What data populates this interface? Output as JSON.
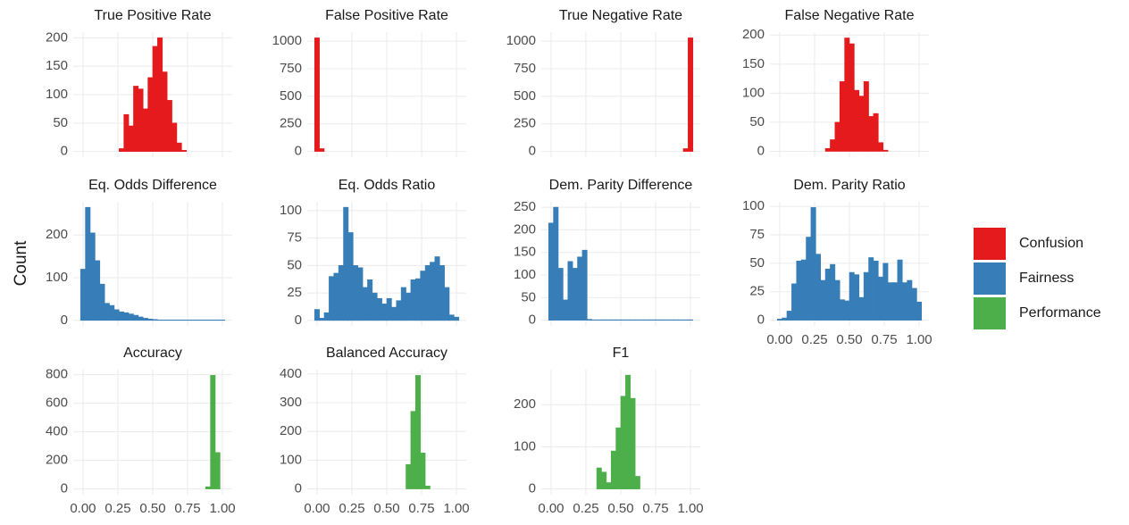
{
  "y_label": "Count",
  "legend": [
    {
      "name": "Confusion",
      "color": "#e41a1c"
    },
    {
      "name": "Fairness",
      "color": "#377eb8"
    },
    {
      "name": "Performance",
      "color": "#4daf4a"
    }
  ],
  "chart_data": [
    {
      "type": "histogram",
      "title": "True Positive Rate",
      "color": "#e41a1c",
      "bins": [
        -0.0172,
        0.0172,
        0.0517,
        0.0862,
        0.1207,
        0.1552,
        0.1897,
        0.2241,
        0.2586,
        0.2931,
        0.3276,
        0.3621,
        0.3966,
        0.431,
        0.4655,
        0.5,
        0.5345,
        0.569,
        0.6034,
        0.6379,
        0.6724,
        0.7069,
        0.7414,
        0.7759,
        0.8103,
        0.8448,
        0.8793,
        0.9138,
        0.9483,
        0.9828,
        1.0172
      ],
      "values": [
        0,
        0,
        0,
        0,
        0,
        0,
        0,
        0,
        5,
        65,
        45,
        115,
        110,
        75,
        130,
        185,
        200,
        140,
        90,
        50,
        15,
        2,
        0,
        0,
        0,
        0,
        0,
        0,
        0,
        0
      ],
      "xlim": [
        -0.07,
        1.07
      ],
      "xticks": [
        {
          "value": 0,
          "label": "0.00"
        },
        {
          "value": 0.25,
          "label": "0.25"
        },
        {
          "value": 0.5,
          "label": "0.50"
        },
        {
          "value": 0.75,
          "label": "0.75"
        },
        {
          "value": 1,
          "label": "1.00"
        }
      ],
      "ylim": [
        -10,
        210
      ],
      "yticks": [
        0,
        50,
        100,
        150,
        200
      ]
    },
    {
      "type": "histogram",
      "title": "False Positive Rate",
      "color": "#e41a1c",
      "bins": [
        -0.0172,
        0.0172,
        0.0517,
        0.0862,
        0.1207,
        0.1552,
        0.1897,
        0.2241,
        0.2586,
        0.2931,
        0.3276,
        0.3621,
        0.3966,
        0.431,
        0.4655,
        0.5,
        0.5345,
        0.569,
        0.6034,
        0.6379,
        0.6724,
        0.7069,
        0.7414,
        0.7759,
        0.8103,
        0.8448,
        0.8793,
        0.9138,
        0.9483,
        0.9828,
        1.0172
      ],
      "values": [
        1030,
        25,
        0,
        0,
        0,
        0,
        0,
        0,
        0,
        0,
        0,
        0,
        0,
        0,
        0,
        0,
        0,
        0,
        0,
        0,
        0,
        0,
        0,
        0,
        0,
        0,
        0,
        0,
        0,
        0
      ],
      "xlim": [
        -0.07,
        1.07
      ],
      "xticks": [
        {
          "value": 0,
          "label": "0.00"
        },
        {
          "value": 0.25,
          "label": "0.25"
        },
        {
          "value": 0.5,
          "label": "0.50"
        },
        {
          "value": 0.75,
          "label": "0.75"
        },
        {
          "value": 1,
          "label": "1.00"
        }
      ],
      "ylim": [
        -52,
        1082
      ],
      "yticks": [
        0,
        250,
        500,
        750,
        1000
      ]
    },
    {
      "type": "histogram",
      "title": "True Negative Rate",
      "color": "#e41a1c",
      "bins": [
        -0.0172,
        0.0172,
        0.0517,
        0.0862,
        0.1207,
        0.1552,
        0.1897,
        0.2241,
        0.2586,
        0.2931,
        0.3276,
        0.3621,
        0.3966,
        0.431,
        0.4655,
        0.5,
        0.5345,
        0.569,
        0.6034,
        0.6379,
        0.6724,
        0.7069,
        0.7414,
        0.7759,
        0.8103,
        0.8448,
        0.8793,
        0.9138,
        0.9483,
        0.9828,
        1.0172
      ],
      "values": [
        0,
        0,
        0,
        0,
        0,
        0,
        0,
        0,
        0,
        0,
        0,
        0,
        0,
        0,
        0,
        0,
        0,
        0,
        0,
        0,
        0,
        0,
        0,
        0,
        0,
        0,
        0,
        0,
        25,
        1030
      ],
      "xlim": [
        -0.07,
        1.07
      ],
      "xticks": [
        {
          "value": 0,
          "label": "0.00"
        },
        {
          "value": 0.25,
          "label": "0.25"
        },
        {
          "value": 0.5,
          "label": "0.50"
        },
        {
          "value": 0.75,
          "label": "0.75"
        },
        {
          "value": 1,
          "label": "1.00"
        }
      ],
      "ylim": [
        -52,
        1082
      ],
      "yticks": [
        0,
        250,
        500,
        750,
        1000
      ]
    },
    {
      "type": "histogram",
      "title": "False Negative Rate",
      "color": "#e41a1c",
      "bins": [
        -0.0172,
        0.0172,
        0.0517,
        0.0862,
        0.1207,
        0.1552,
        0.1897,
        0.2241,
        0.2586,
        0.2931,
        0.3276,
        0.3621,
        0.3966,
        0.431,
        0.4655,
        0.5,
        0.5345,
        0.569,
        0.6034,
        0.6379,
        0.6724,
        0.7069,
        0.7414,
        0.7759,
        0.8103,
        0.8448,
        0.8793,
        0.9138,
        0.9483,
        0.9828,
        1.0172
      ],
      "values": [
        0,
        0,
        0,
        0,
        0,
        0,
        0,
        0,
        0,
        0,
        5,
        20,
        50,
        120,
        195,
        185,
        105,
        95,
        120,
        60,
        65,
        15,
        2,
        0,
        0,
        0,
        0,
        0,
        0,
        0
      ],
      "xlim": [
        -0.07,
        1.07
      ],
      "xticks": [
        {
          "value": 0,
          "label": "0.00"
        },
        {
          "value": 0.25,
          "label": "0.25"
        },
        {
          "value": 0.5,
          "label": "0.50"
        },
        {
          "value": 0.75,
          "label": "0.75"
        },
        {
          "value": 1,
          "label": "1.00"
        }
      ],
      "ylim": [
        -10,
        205
      ],
      "yticks": [
        0,
        50,
        100,
        150,
        200
      ]
    },
    {
      "type": "histogram",
      "title": "Eq. Odds Difference",
      "color": "#377eb8",
      "bins": [
        -0.0172,
        0.0172,
        0.0517,
        0.0862,
        0.1207,
        0.1552,
        0.1897,
        0.2241,
        0.2586,
        0.2931,
        0.3276,
        0.3621,
        0.3966,
        0.431,
        0.4655,
        0.5,
        0.5345,
        0.569,
        0.6034,
        0.6379,
        0.6724,
        0.7069,
        0.7414,
        0.7759,
        0.8103,
        0.8448,
        0.8793,
        0.9138,
        0.9483,
        0.9828,
        1.0172
      ],
      "values": [
        120,
        265,
        205,
        140,
        85,
        40,
        35,
        25,
        20,
        18,
        15,
        12,
        8,
        5,
        3,
        2,
        1,
        1,
        1,
        1,
        1,
        1,
        1,
        1,
        1,
        1,
        1,
        1,
        1,
        1
      ],
      "xlim": [
        -0.07,
        1.07
      ],
      "xticks": [
        {
          "value": 0,
          "label": "0.00"
        },
        {
          "value": 0.25,
          "label": "0.25"
        },
        {
          "value": 0.5,
          "label": "0.50"
        },
        {
          "value": 0.75,
          "label": "0.75"
        },
        {
          "value": 1,
          "label": "1.00"
        }
      ],
      "ylim": [
        -13,
        278
      ],
      "yticks": [
        0,
        100,
        200
      ]
    },
    {
      "type": "histogram",
      "title": "Eq. Odds Ratio",
      "color": "#377eb8",
      "bins": [
        -0.0172,
        0.0172,
        0.0517,
        0.0862,
        0.1207,
        0.1552,
        0.1897,
        0.2241,
        0.2586,
        0.2931,
        0.3276,
        0.3621,
        0.3966,
        0.431,
        0.4655,
        0.5,
        0.5345,
        0.569,
        0.6034,
        0.6379,
        0.6724,
        0.7069,
        0.7414,
        0.7759,
        0.8103,
        0.8448,
        0.8793,
        0.9138,
        0.9483,
        0.9828,
        1.0172
      ],
      "values": [
        10,
        2,
        7,
        40,
        43,
        50,
        103,
        80,
        50,
        48,
        30,
        37,
        25,
        20,
        15,
        20,
        12,
        18,
        30,
        25,
        37,
        38,
        45,
        50,
        53,
        58,
        50,
        30,
        5,
        3
      ],
      "xlim": [
        -0.07,
        1.07
      ],
      "xticks": [
        {
          "value": 0,
          "label": "0.00"
        },
        {
          "value": 0.25,
          "label": "0.25"
        },
        {
          "value": 0.5,
          "label": "0.50"
        },
        {
          "value": 0.75,
          "label": "0.75"
        },
        {
          "value": 1,
          "label": "1.00"
        }
      ],
      "ylim": [
        -5,
        108
      ],
      "yticks": [
        0,
        25,
        50,
        75,
        100
      ]
    },
    {
      "type": "histogram",
      "title": "Dem. Parity Difference",
      "color": "#377eb8",
      "bins": [
        -0.0172,
        0.0172,
        0.0517,
        0.0862,
        0.1207,
        0.1552,
        0.1897,
        0.2241,
        0.2586,
        0.2931,
        0.3276,
        0.3621,
        0.3966,
        0.431,
        0.4655,
        0.5,
        0.5345,
        0.569,
        0.6034,
        0.6379,
        0.6724,
        0.7069,
        0.7414,
        0.7759,
        0.8103,
        0.8448,
        0.8793,
        0.9138,
        0.9483,
        0.9828,
        1.0172
      ],
      "values": [
        215,
        250,
        115,
        45,
        130,
        115,
        140,
        155,
        2,
        1,
        1,
        1,
        1,
        1,
        1,
        1,
        1,
        1,
        1,
        1,
        1,
        1,
        1,
        1,
        1,
        1,
        1,
        1,
        1,
        1
      ],
      "xlim": [
        -0.07,
        1.07
      ],
      "xticks": [
        {
          "value": 0,
          "label": "0.00"
        },
        {
          "value": 0.25,
          "label": "0.25"
        },
        {
          "value": 0.5,
          "label": "0.50"
        },
        {
          "value": 0.75,
          "label": "0.75"
        },
        {
          "value": 1,
          "label": "1.00"
        }
      ],
      "ylim": [
        -12.5,
        262
      ],
      "yticks": [
        0,
        50,
        100,
        150,
        200,
        250
      ]
    },
    {
      "type": "histogram",
      "title": "Dem. Parity Ratio",
      "color": "#377eb8",
      "bins": [
        -0.0172,
        0.0172,
        0.0517,
        0.0862,
        0.1207,
        0.1552,
        0.1897,
        0.2241,
        0.2586,
        0.2931,
        0.3276,
        0.3621,
        0.3966,
        0.431,
        0.4655,
        0.5,
        0.5345,
        0.569,
        0.6034,
        0.6379,
        0.6724,
        0.7069,
        0.7414,
        0.7759,
        0.8103,
        0.8448,
        0.8793,
        0.9138,
        0.9483,
        0.9828,
        1.0172
      ],
      "values": [
        1,
        2,
        8,
        32,
        52,
        53,
        73,
        99,
        58,
        35,
        45,
        49,
        35,
        18,
        17,
        42,
        40,
        20,
        42,
        55,
        52,
        38,
        50,
        33,
        33,
        53,
        33,
        35,
        28,
        16
      ],
      "xlim": [
        -0.07,
        1.07
      ],
      "xticks": [
        {
          "value": 0,
          "label": "0.00"
        },
        {
          "value": 0.25,
          "label": "0.25"
        },
        {
          "value": 0.5,
          "label": "0.50"
        },
        {
          "value": 0.75,
          "label": "0.75"
        },
        {
          "value": 1,
          "label": "1.00"
        }
      ],
      "ylim": [
        -5,
        104
      ],
      "yticks": [
        0,
        25,
        50,
        75,
        100
      ]
    },
    {
      "type": "histogram",
      "title": "Accuracy",
      "color": "#4daf4a",
      "bins": [
        -0.0172,
        0.0172,
        0.0517,
        0.0862,
        0.1207,
        0.1552,
        0.1897,
        0.2241,
        0.2586,
        0.2931,
        0.3276,
        0.3621,
        0.3966,
        0.431,
        0.4655,
        0.5,
        0.5345,
        0.569,
        0.6034,
        0.6379,
        0.6724,
        0.7069,
        0.7414,
        0.7759,
        0.8103,
        0.8448,
        0.8793,
        0.9138,
        0.9483,
        0.9828,
        1.0172
      ],
      "values": [
        0,
        0,
        0,
        0,
        0,
        0,
        0,
        0,
        0,
        0,
        0,
        0,
        0,
        0,
        0,
        0,
        0,
        0,
        0,
        0,
        0,
        0,
        0,
        0,
        0,
        0,
        15,
        795,
        255,
        0
      ],
      "xlim": [
        -0.07,
        1.07
      ],
      "xticks": [
        {
          "value": 0,
          "label": "0.00"
        },
        {
          "value": 0.25,
          "label": "0.25"
        },
        {
          "value": 0.5,
          "label": "0.50"
        },
        {
          "value": 0.75,
          "label": "0.75"
        },
        {
          "value": 1,
          "label": "1.00"
        }
      ],
      "ylim": [
        -40,
        835
      ],
      "yticks": [
        0,
        200,
        400,
        600,
        800
      ]
    },
    {
      "type": "histogram",
      "title": "Balanced Accuracy",
      "color": "#4daf4a",
      "bins": [
        -0.0172,
        0.0172,
        0.0517,
        0.0862,
        0.1207,
        0.1552,
        0.1897,
        0.2241,
        0.2586,
        0.2931,
        0.3276,
        0.3621,
        0.3966,
        0.431,
        0.4655,
        0.5,
        0.5345,
        0.569,
        0.6034,
        0.6379,
        0.6724,
        0.7069,
        0.7414,
        0.7759,
        0.8103,
        0.8448,
        0.8793,
        0.9138,
        0.9483,
        0.9828,
        1.0172
      ],
      "values": [
        0,
        0,
        0,
        0,
        0,
        0,
        0,
        0,
        0,
        0,
        0,
        0,
        0,
        0,
        0,
        0,
        0,
        0,
        0,
        85,
        270,
        395,
        125,
        10,
        0,
        0,
        0,
        0,
        0,
        0
      ],
      "xlim": [
        -0.07,
        1.07
      ],
      "xticks": [
        {
          "value": 0,
          "label": "0.00"
        },
        {
          "value": 0.25,
          "label": "0.25"
        },
        {
          "value": 0.5,
          "label": "0.50"
        },
        {
          "value": 0.75,
          "label": "0.75"
        },
        {
          "value": 1,
          "label": "1.00"
        }
      ],
      "ylim": [
        -20,
        415
      ],
      "yticks": [
        0,
        100,
        200,
        300,
        400
      ]
    },
    {
      "type": "histogram",
      "title": "F1",
      "color": "#4daf4a",
      "bins": [
        -0.0172,
        0.0172,
        0.0517,
        0.0862,
        0.1207,
        0.1552,
        0.1897,
        0.2241,
        0.2586,
        0.2931,
        0.3276,
        0.3621,
        0.3966,
        0.431,
        0.4655,
        0.5,
        0.5345,
        0.569,
        0.6034,
        0.6379,
        0.6724,
        0.7069,
        0.7414,
        0.7759,
        0.8103,
        0.8448,
        0.8793,
        0.9138,
        0.9483,
        0.9828,
        1.0172
      ],
      "values": [
        0,
        0,
        0,
        0,
        0,
        0,
        0,
        0,
        0,
        0,
        50,
        40,
        15,
        90,
        145,
        220,
        270,
        215,
        30,
        0,
        0,
        0,
        0,
        0,
        0,
        0,
        0,
        0,
        0,
        0
      ],
      "xlim": [
        -0.07,
        1.07
      ],
      "xticks": [
        {
          "value": 0,
          "label": "0.00"
        },
        {
          "value": 0.25,
          "label": "0.25"
        },
        {
          "value": 0.5,
          "label": "0.50"
        },
        {
          "value": 0.75,
          "label": "0.75"
        },
        {
          "value": 1,
          "label": "1.00"
        }
      ],
      "ylim": [
        -13.5,
        283
      ],
      "yticks": [
        0,
        100,
        200
      ]
    }
  ]
}
